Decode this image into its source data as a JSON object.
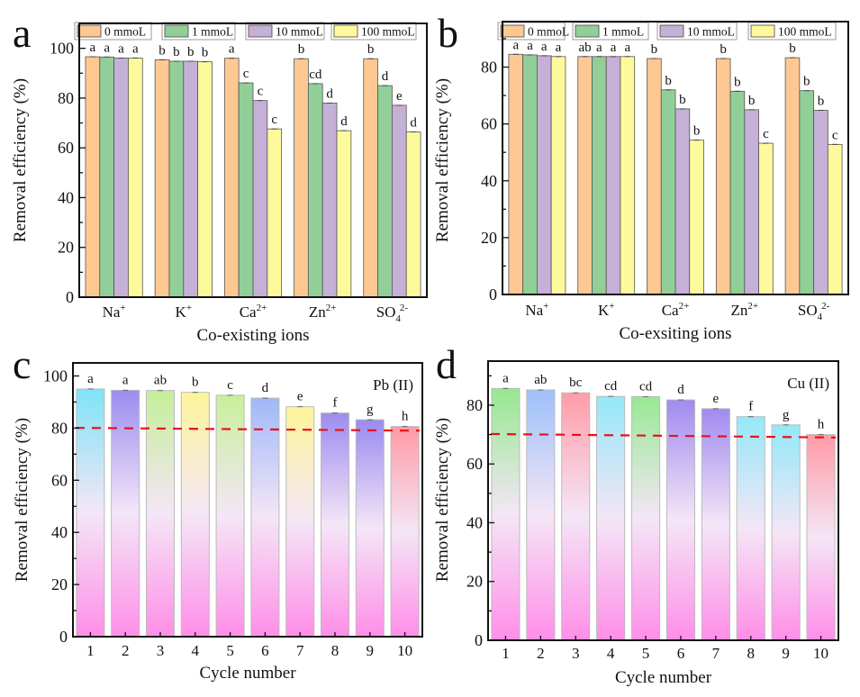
{
  "chart_data": [
    {
      "panel": "a",
      "type": "bar",
      "ylabel": "Removal efficiency (%)",
      "xlabel": "Co-existing ions",
      "ylim": [
        0,
        110
      ],
      "yticks": [
        0,
        20,
        40,
        60,
        80,
        100
      ],
      "categories": [
        {
          "base": "Na",
          "sup": "+"
        },
        {
          "base": "K",
          "sup": "+"
        },
        {
          "base": "Ca",
          "sup": "2+"
        },
        {
          "base": "Zn",
          "sup": "2+"
        },
        {
          "base": "SO",
          "sub": "4",
          "sup": "2-"
        }
      ],
      "legend_position": "top",
      "series": [
        {
          "name": "0 mmoL",
          "color": "#fdc892",
          "values": [
            96.6,
            95.4,
            96.0,
            95.8,
            95.8
          ],
          "letters": [
            "a",
            "b",
            "a",
            "b",
            "b"
          ]
        },
        {
          "name": "1 mmoL",
          "color": "#92cf98",
          "values": [
            96.5,
            94.8,
            86.1,
            85.8,
            85.0
          ],
          "letters": [
            "a",
            "b",
            "c",
            "cd",
            "d"
          ]
        },
        {
          "name": "10 mmoL",
          "color": "#c5b0d8",
          "values": [
            96.1,
            94.8,
            79.0,
            78.0,
            77.1
          ],
          "letters": [
            "a",
            "b",
            "c",
            "d",
            "e"
          ]
        },
        {
          "name": "100 mmoL",
          "color": "#fdfa9c",
          "values": [
            96.1,
            94.6,
            67.6,
            66.9,
            66.4
          ],
          "letters": [
            "a",
            "b",
            "c",
            "d",
            "d"
          ]
        }
      ]
    },
    {
      "panel": "b",
      "type": "bar",
      "ylabel": "Removal efficiency (%)",
      "xlabel": "Co-exsiting ions",
      "ylim": [
        0,
        96
      ],
      "yticks": [
        0,
        20,
        40,
        60,
        80
      ],
      "categories": [
        {
          "base": "Na",
          "sup": "+"
        },
        {
          "base": "K",
          "sup": "+"
        },
        {
          "base": "Ca",
          "sup": "2+"
        },
        {
          "base": "Zn",
          "sup": "2+"
        },
        {
          "base": "SO",
          "sub": "4",
          "sup": "2-"
        }
      ],
      "legend_position": "top",
      "series": [
        {
          "name": "0 mmoL",
          "color": "#fdc892",
          "values": [
            84.5,
            83.7,
            83.0,
            83.0,
            83.3
          ],
          "letters": [
            "a",
            "ab",
            "b",
            "b",
            "b"
          ]
        },
        {
          "name": "1 mmoL",
          "color": "#92cf98",
          "values": [
            84.3,
            83.7,
            72.0,
            71.5,
            71.7
          ],
          "letters": [
            "a",
            "a",
            "b",
            "b",
            "b"
          ]
        },
        {
          "name": "10 mmoL",
          "color": "#c5b0d8",
          "values": [
            84.0,
            83.7,
            65.3,
            65.0,
            64.8
          ],
          "letters": [
            "a",
            "a",
            "b",
            "b",
            "b"
          ]
        },
        {
          "name": "100 mmoL",
          "color": "#fdfa9c",
          "values": [
            83.7,
            83.7,
            54.3,
            53.2,
            52.8
          ],
          "letters": [
            "a",
            "a",
            "b",
            "c",
            "c"
          ]
        }
      ]
    },
    {
      "panel": "c",
      "type": "bar",
      "annotation": "Pb (II)",
      "ylabel": "Removal efficiency (%)",
      "xlabel": "Cycle number",
      "ylim": [
        0,
        105
      ],
      "yticks": [
        0,
        20,
        40,
        60,
        80,
        100
      ],
      "categories": [
        "1",
        "2",
        "3",
        "4",
        "5",
        "6",
        "7",
        "8",
        "9",
        "10"
      ],
      "values": [
        95.0,
        94.5,
        94.4,
        93.7,
        92.6,
        91.5,
        88.2,
        85.8,
        83.2,
        80.6
      ],
      "letters": [
        "a",
        "a",
        "ab",
        "b",
        "c",
        "d",
        "e",
        "f",
        "g",
        "h"
      ],
      "bar_top_colors": [
        "#7fe3f7",
        "#9b8cf0",
        "#c5ee9a",
        "#fdf59a",
        "#c8f09a",
        "#9fb8f8",
        "#fdf59a",
        "#9e8af0",
        "#9a8af0",
        "#ff9aa6"
      ],
      "bar_bottom_color": "#ff8ee8",
      "reference_line": {
        "color": "#e8121a",
        "y_start": 80.1,
        "y_end": 79.0,
        "style": "dashed"
      }
    },
    {
      "panel": "d",
      "type": "bar",
      "annotation": "Cu (II)",
      "ylabel": "Removal efficiency (%)",
      "xlabel": "Cycle number",
      "ylim": [
        0,
        95
      ],
      "yticks": [
        0,
        20,
        40,
        60,
        80
      ],
      "categories": [
        "1",
        "2",
        "3",
        "4",
        "5",
        "6",
        "7",
        "8",
        "9",
        "10"
      ],
      "values": [
        85.7,
        85.2,
        84.2,
        83.0,
        82.9,
        81.8,
        78.8,
        76.1,
        73.3,
        70.0
      ],
      "letters": [
        "a",
        "ab",
        "bc",
        "cd",
        "cd",
        "d",
        "e",
        "f",
        "g",
        "h"
      ],
      "bar_top_colors": [
        "#95e890",
        "#9ec0fa",
        "#ff9ca8",
        "#94e8f8",
        "#98e894",
        "#a08af0",
        "#a08af0",
        "#94e8f8",
        "#94e8f8",
        "#ff9aa6"
      ],
      "bar_bottom_color": "#ff8ee8",
      "reference_line": {
        "color": "#e8121a",
        "y_start": 70.2,
        "y_end": 69.0,
        "style": "dashed"
      }
    }
  ]
}
